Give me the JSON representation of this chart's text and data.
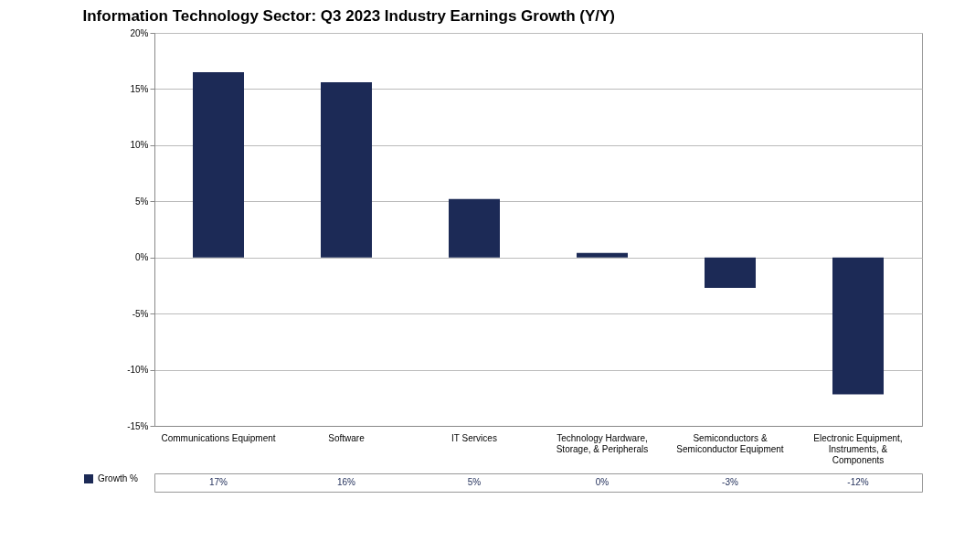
{
  "chart_data": {
    "type": "bar",
    "title": "Information Technology Sector: Q3 2023 Industry Earnings Growth (Y/Y)",
    "categories": [
      "Communications Equipment",
      "Software",
      "IT Services",
      "Technology Hardware, Storage, & Peripherals",
      "Semiconductors & Semiconductor Equipment",
      "Electronic Equipment, Instruments, & Components"
    ],
    "series": [
      {
        "name": "Growth %",
        "color": "#1c2a56",
        "values": [
          16.5,
          15.6,
          5.2,
          0.4,
          -2.7,
          -12.2
        ],
        "value_labels": [
          "17%",
          "16%",
          "5%",
          "0%",
          "-3%",
          "-12%"
        ]
      }
    ],
    "ylim": [
      -15,
      20
    ],
    "yticks": [
      {
        "value": -15,
        "label": "-15%"
      },
      {
        "value": -10,
        "label": "-10%"
      },
      {
        "value": -5,
        "label": "-5%"
      },
      {
        "value": 0,
        "label": "0%"
      },
      {
        "value": 5,
        "label": "5%"
      },
      {
        "value": 10,
        "label": "10%"
      },
      {
        "value": 15,
        "label": "15%"
      },
      {
        "value": 20,
        "label": "20%"
      }
    ],
    "grid": "y",
    "legend": "bottom left"
  }
}
